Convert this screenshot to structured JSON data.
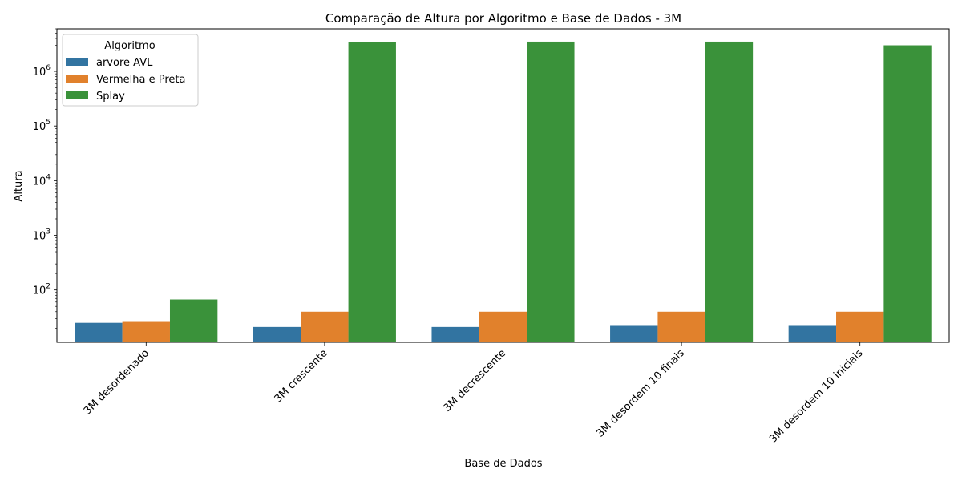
{
  "chart_data": {
    "type": "bar",
    "title": "Comparação de Altura por Algoritmo e Base de Dados - 3M",
    "xlabel": "Base de Dados",
    "ylabel": "Altura",
    "yscale": "log",
    "ylim": [
      11,
      6000000
    ],
    "yticks": [
      {
        "value": 100,
        "base": "10",
        "exp": "2"
      },
      {
        "value": 1000,
        "base": "10",
        "exp": "3"
      },
      {
        "value": 10000,
        "base": "10",
        "exp": "4"
      },
      {
        "value": 100000,
        "base": "10",
        "exp": "5"
      },
      {
        "value": 1000000,
        "base": "10",
        "exp": "6"
      }
    ],
    "categories": [
      "3M desordenado",
      "3M crescente",
      "3M decrescente",
      "3M desordem 10 finais",
      "3M desordem 10 iniciais"
    ],
    "series": [
      {
        "name": "arvore AVL",
        "color": "#3274a1",
        "values": [
          25,
          21,
          21,
          22,
          22
        ]
      },
      {
        "name": "Vermelha e Preta",
        "color": "#e1812c",
        "values": [
          26,
          40,
          40,
          40,
          40
        ]
      },
      {
        "name": "Splay",
        "color": "#3a923a",
        "values": [
          67,
          3400000,
          3500000,
          3500000,
          3000000
        ]
      }
    ],
    "legend": {
      "title": "Algoritmo",
      "placement": "upper-left"
    },
    "grid": false
  }
}
